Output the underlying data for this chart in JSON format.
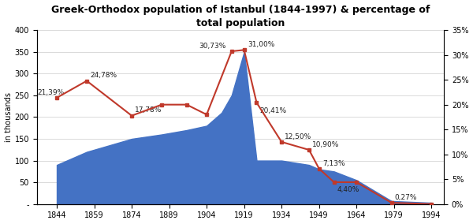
{
  "title": "Greek-Orthodox population of Istanbul (1844-1997) & percentage of\ntotal population",
  "area_years": [
    1844,
    1856,
    1874,
    1886,
    1896,
    1904,
    1910,
    1914,
    1919,
    1924,
    1934,
    1945,
    1949,
    1955,
    1964,
    1978,
    1994
  ],
  "area_pop": [
    90,
    120,
    150,
    160,
    170,
    180,
    210,
    250,
    350,
    100,
    100,
    90,
    80,
    75,
    55,
    7,
    3
  ],
  "pct_years": [
    1844,
    1856,
    1874,
    1886,
    1896,
    1904,
    1914,
    1919,
    1924,
    1934,
    1945,
    1949,
    1955,
    1964,
    1978,
    1994
  ],
  "pct_vals": [
    21.39,
    24.78,
    17.78,
    20.0,
    20.0,
    18.0,
    30.73,
    31.0,
    20.41,
    12.5,
    10.9,
    7.13,
    4.4,
    4.4,
    0.27,
    0.0
  ],
  "pct_labels": [
    [
      1844,
      21.39,
      "21,39%",
      -18,
      3
    ],
    [
      1856,
      24.78,
      "24,78%",
      3,
      3
    ],
    [
      1874,
      17.78,
      "17,78%",
      3,
      3
    ],
    [
      1904,
      18.0,
      "",
      0,
      0
    ],
    [
      1914,
      30.73,
      "30,73%",
      -30,
      3
    ],
    [
      1919,
      31.0,
      "31,00%",
      3,
      3
    ],
    [
      1924,
      20.41,
      "20,41%",
      3,
      -9
    ],
    [
      1934,
      12.5,
      "12,50%",
      3,
      3
    ],
    [
      1945,
      10.9,
      "10,90%",
      3,
      3
    ],
    [
      1949,
      7.13,
      "7,13%",
      3,
      3
    ],
    [
      1955,
      4.4,
      "4,40%",
      3,
      -9
    ],
    [
      1978,
      0.27,
      "0,27%",
      3,
      3
    ]
  ],
  "area_color": "#4472C4",
  "line_color": "#C0392B",
  "marker_color": "#C0392B",
  "ylabel_left": "in thousands",
  "ylim_left": [
    0,
    400
  ],
  "ylim_right": [
    0,
    35
  ],
  "yticks_left": [
    0,
    50,
    100,
    150,
    200,
    250,
    300,
    350,
    400
  ],
  "yticks_right": [
    0,
    5,
    10,
    15,
    20,
    25,
    30,
    35
  ],
  "xticks": [
    1844,
    1859,
    1874,
    1889,
    1904,
    1919,
    1934,
    1949,
    1964,
    1979,
    1994
  ],
  "xlim": [
    1836,
    1999
  ],
  "background_color": "#FFFFFF",
  "grid_color": "#CCCCCC",
  "title_fontsize": 9,
  "tick_fontsize": 7,
  "label_fontsize": 6.5
}
